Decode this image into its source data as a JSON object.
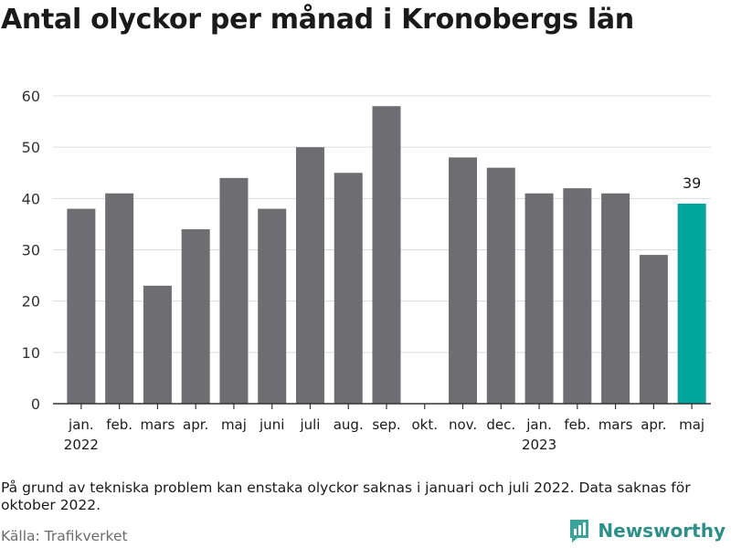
{
  "title": "Antal olyckor per månad i Kronobergs län",
  "note": "På grund av tekniska problem kan enstaka olyckor saknas i januari och juli 2022. Data saknas för oktober 2022.",
  "source": "Källa: Trafikverket",
  "brand": {
    "name": "Newsworthy",
    "icon": "chart-logo-icon",
    "color": "#2e8f8a"
  },
  "chart_data": {
    "type": "bar",
    "categories": [
      "jan.",
      "feb.",
      "mars",
      "apr.",
      "maj",
      "juni",
      "juli",
      "aug.",
      "sep.",
      "okt.",
      "nov.",
      "dec.",
      "jan.",
      "feb.",
      "mars",
      "apr.",
      "maj"
    ],
    "year_labels": [
      {
        "index": 0,
        "label": "2022"
      },
      {
        "index": 12,
        "label": "2023"
      }
    ],
    "values": [
      38,
      41,
      23,
      34,
      44,
      38,
      50,
      45,
      58,
      null,
      48,
      46,
      41,
      42,
      41,
      29,
      39
    ],
    "highlight_index": 16,
    "highlight_label": "39",
    "yticks": [
      0,
      10,
      20,
      30,
      40,
      50,
      60
    ],
    "ylim": [
      0,
      60
    ],
    "grid": true,
    "colors": {
      "bar": "#6e6d72",
      "highlight": "#00a59b",
      "grid": "#dcdcdc",
      "axis": "#333333"
    }
  }
}
